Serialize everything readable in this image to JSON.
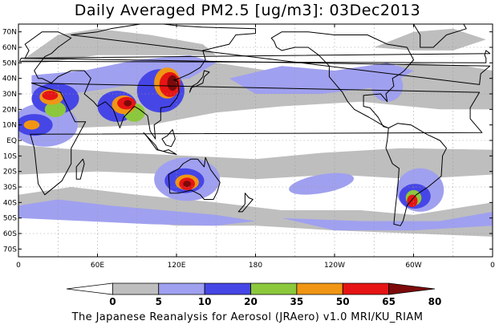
{
  "title": "Daily Averaged PM2.5 [ug/m3]: 03Dec2013",
  "footer": "The Japanese Reanalysis for Aerosol (JRAero) v1.0 MRI/KU_RIAM",
  "map": {
    "lon_range": [
      0,
      360
    ],
    "lat_range": [
      -75,
      75
    ],
    "grid": true,
    "lat_ticks": [
      {
        "lat": 70,
        "label": "70N"
      },
      {
        "lat": 60,
        "label": "60N"
      },
      {
        "lat": 50,
        "label": "50N"
      },
      {
        "lat": 40,
        "label": "40N"
      },
      {
        "lat": 30,
        "label": "30N"
      },
      {
        "lat": 20,
        "label": "20N"
      },
      {
        "lat": 10,
        "label": "10N"
      },
      {
        "lat": 0,
        "label": "EQ"
      },
      {
        "lat": -10,
        "label": "10S"
      },
      {
        "lat": -20,
        "label": "20S"
      },
      {
        "lat": -30,
        "label": "30S"
      },
      {
        "lat": -40,
        "label": "40S"
      },
      {
        "lat": -50,
        "label": "50S"
      },
      {
        "lat": -60,
        "label": "60S"
      },
      {
        "lat": -70,
        "label": "70S"
      }
    ],
    "lon_ticks": [
      {
        "lon": 0,
        "label": "0"
      },
      {
        "lon": 60,
        "label": "60E"
      },
      {
        "lon": 120,
        "label": "120E"
      },
      {
        "lon": 180,
        "label": "180"
      },
      {
        "lon": 240,
        "label": "120W"
      },
      {
        "lon": 300,
        "label": "60W"
      },
      {
        "lon": 360,
        "label": "0"
      }
    ]
  },
  "colorbar": {
    "thresholds": [
      "0",
      "5",
      "10",
      "20",
      "35",
      "50",
      "65",
      "80"
    ],
    "colors": [
      "#ffffff",
      "#bebebe",
      "#a0a0f0",
      "#4646e6",
      "#8cc83c",
      "#f09614",
      "#e61414",
      "#7d0a0a"
    ]
  }
}
